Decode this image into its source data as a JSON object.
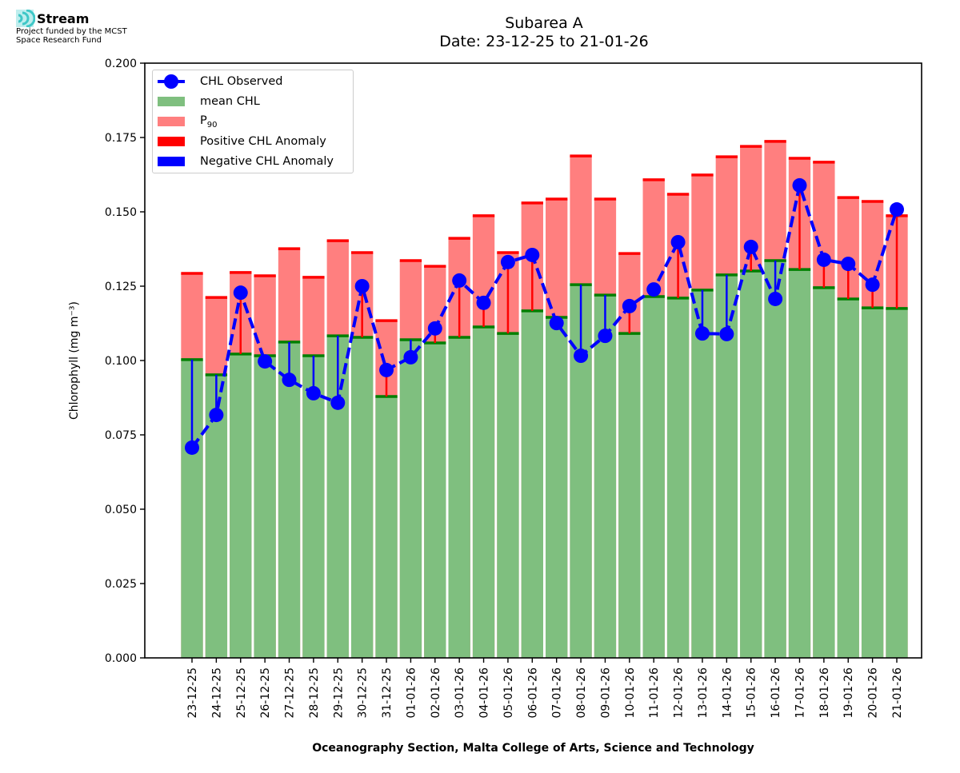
{
  "header": {
    "logo_icon": "stream-waves-icon",
    "logo_name": "Stream",
    "logo_sub1": "Project funded by the MCST",
    "logo_sub2": "Space Research Fund"
  },
  "colors": {
    "mean": "#7fbf7f",
    "mean_edge": "#007f00",
    "p90": "#ff7f7f",
    "p90_edge": "#ff0000",
    "positive": "#ff0000",
    "negative": "#0000ff",
    "observed": "#0000ff"
  },
  "chart_data": {
    "type": "bar",
    "title": "Subarea A",
    "subtitle": "Date: 23-12-25 to 21-01-26",
    "xlabel": "Oceanography Section, Malta College of Arts, Science and Technology",
    "ylabel": "Chlorophyll (mg m⁻³)",
    "ylim": [
      0,
      0.2
    ],
    "yticks": [
      "0.000",
      "0.025",
      "0.050",
      "0.075",
      "0.100",
      "0.125",
      "0.150",
      "0.175",
      "0.200"
    ],
    "grid": false,
    "legend_position": "top-left",
    "legend": [
      {
        "label": "CHL Observed",
        "kind": "line-marker"
      },
      {
        "label": "mean CHL",
        "kind": "patch-mean"
      },
      {
        "label": "P",
        "sub": "90",
        "kind": "patch-p90"
      },
      {
        "label": "Positive CHL Anomaly",
        "kind": "patch-positive"
      },
      {
        "label": "Negative CHL Anomaly",
        "kind": "patch-negative"
      }
    ],
    "categories": [
      "23-12-25",
      "24-12-25",
      "25-12-25",
      "26-12-25",
      "27-12-25",
      "28-12-25",
      "29-12-25",
      "30-12-25",
      "31-12-25",
      "01-01-26",
      "02-01-26",
      "03-01-26",
      "04-01-26",
      "05-01-26",
      "06-01-26",
      "07-01-26",
      "08-01-26",
      "09-01-26",
      "10-01-26",
      "11-01-26",
      "12-01-26",
      "13-01-26",
      "14-01-26",
      "15-01-26",
      "16-01-26",
      "17-01-26",
      "18-01-26",
      "19-01-26",
      "20-01-26",
      "21-01-26"
    ],
    "series": [
      {
        "name": "mean CHL",
        "values": [
          0.1003,
          0.0952,
          0.1022,
          0.1016,
          0.1062,
          0.1016,
          0.1083,
          0.1078,
          0.0879,
          0.107,
          0.1059,
          0.1078,
          0.1113,
          0.1091,
          0.1167,
          0.1145,
          0.1255,
          0.122,
          0.1091,
          0.1215,
          0.121,
          0.1237,
          0.1288,
          0.1301,
          0.1336,
          0.1306,
          0.1245,
          0.1207,
          0.1177,
          0.1175
        ]
      },
      {
        "name": "P90",
        "values": [
          0.1293,
          0.1212,
          0.1296,
          0.1285,
          0.1376,
          0.128,
          0.1403,
          0.1363,
          0.1134,
          0.1336,
          0.1317,
          0.1411,
          0.1487,
          0.1363,
          0.153,
          0.1543,
          0.1688,
          0.1543,
          0.136,
          0.1608,
          0.1559,
          0.1624,
          0.1685,
          0.172,
          0.1737,
          0.168,
          0.1667,
          0.1548,
          0.1535,
          0.1487
        ]
      },
      {
        "name": "CHL Observed",
        "values": [
          0.0707,
          0.0817,
          0.1228,
          0.0997,
          0.0935,
          0.089,
          0.0858,
          0.125,
          0.0968,
          0.1011,
          0.1108,
          0.1269,
          0.1194,
          0.1331,
          0.1355,
          0.1126,
          0.1016,
          0.1083,
          0.1183,
          0.1239,
          0.1398,
          0.1091,
          0.1089,
          0.1382,
          0.1207,
          0.1589,
          0.1339,
          0.1325,
          0.1255,
          0.1508
        ]
      }
    ]
  }
}
